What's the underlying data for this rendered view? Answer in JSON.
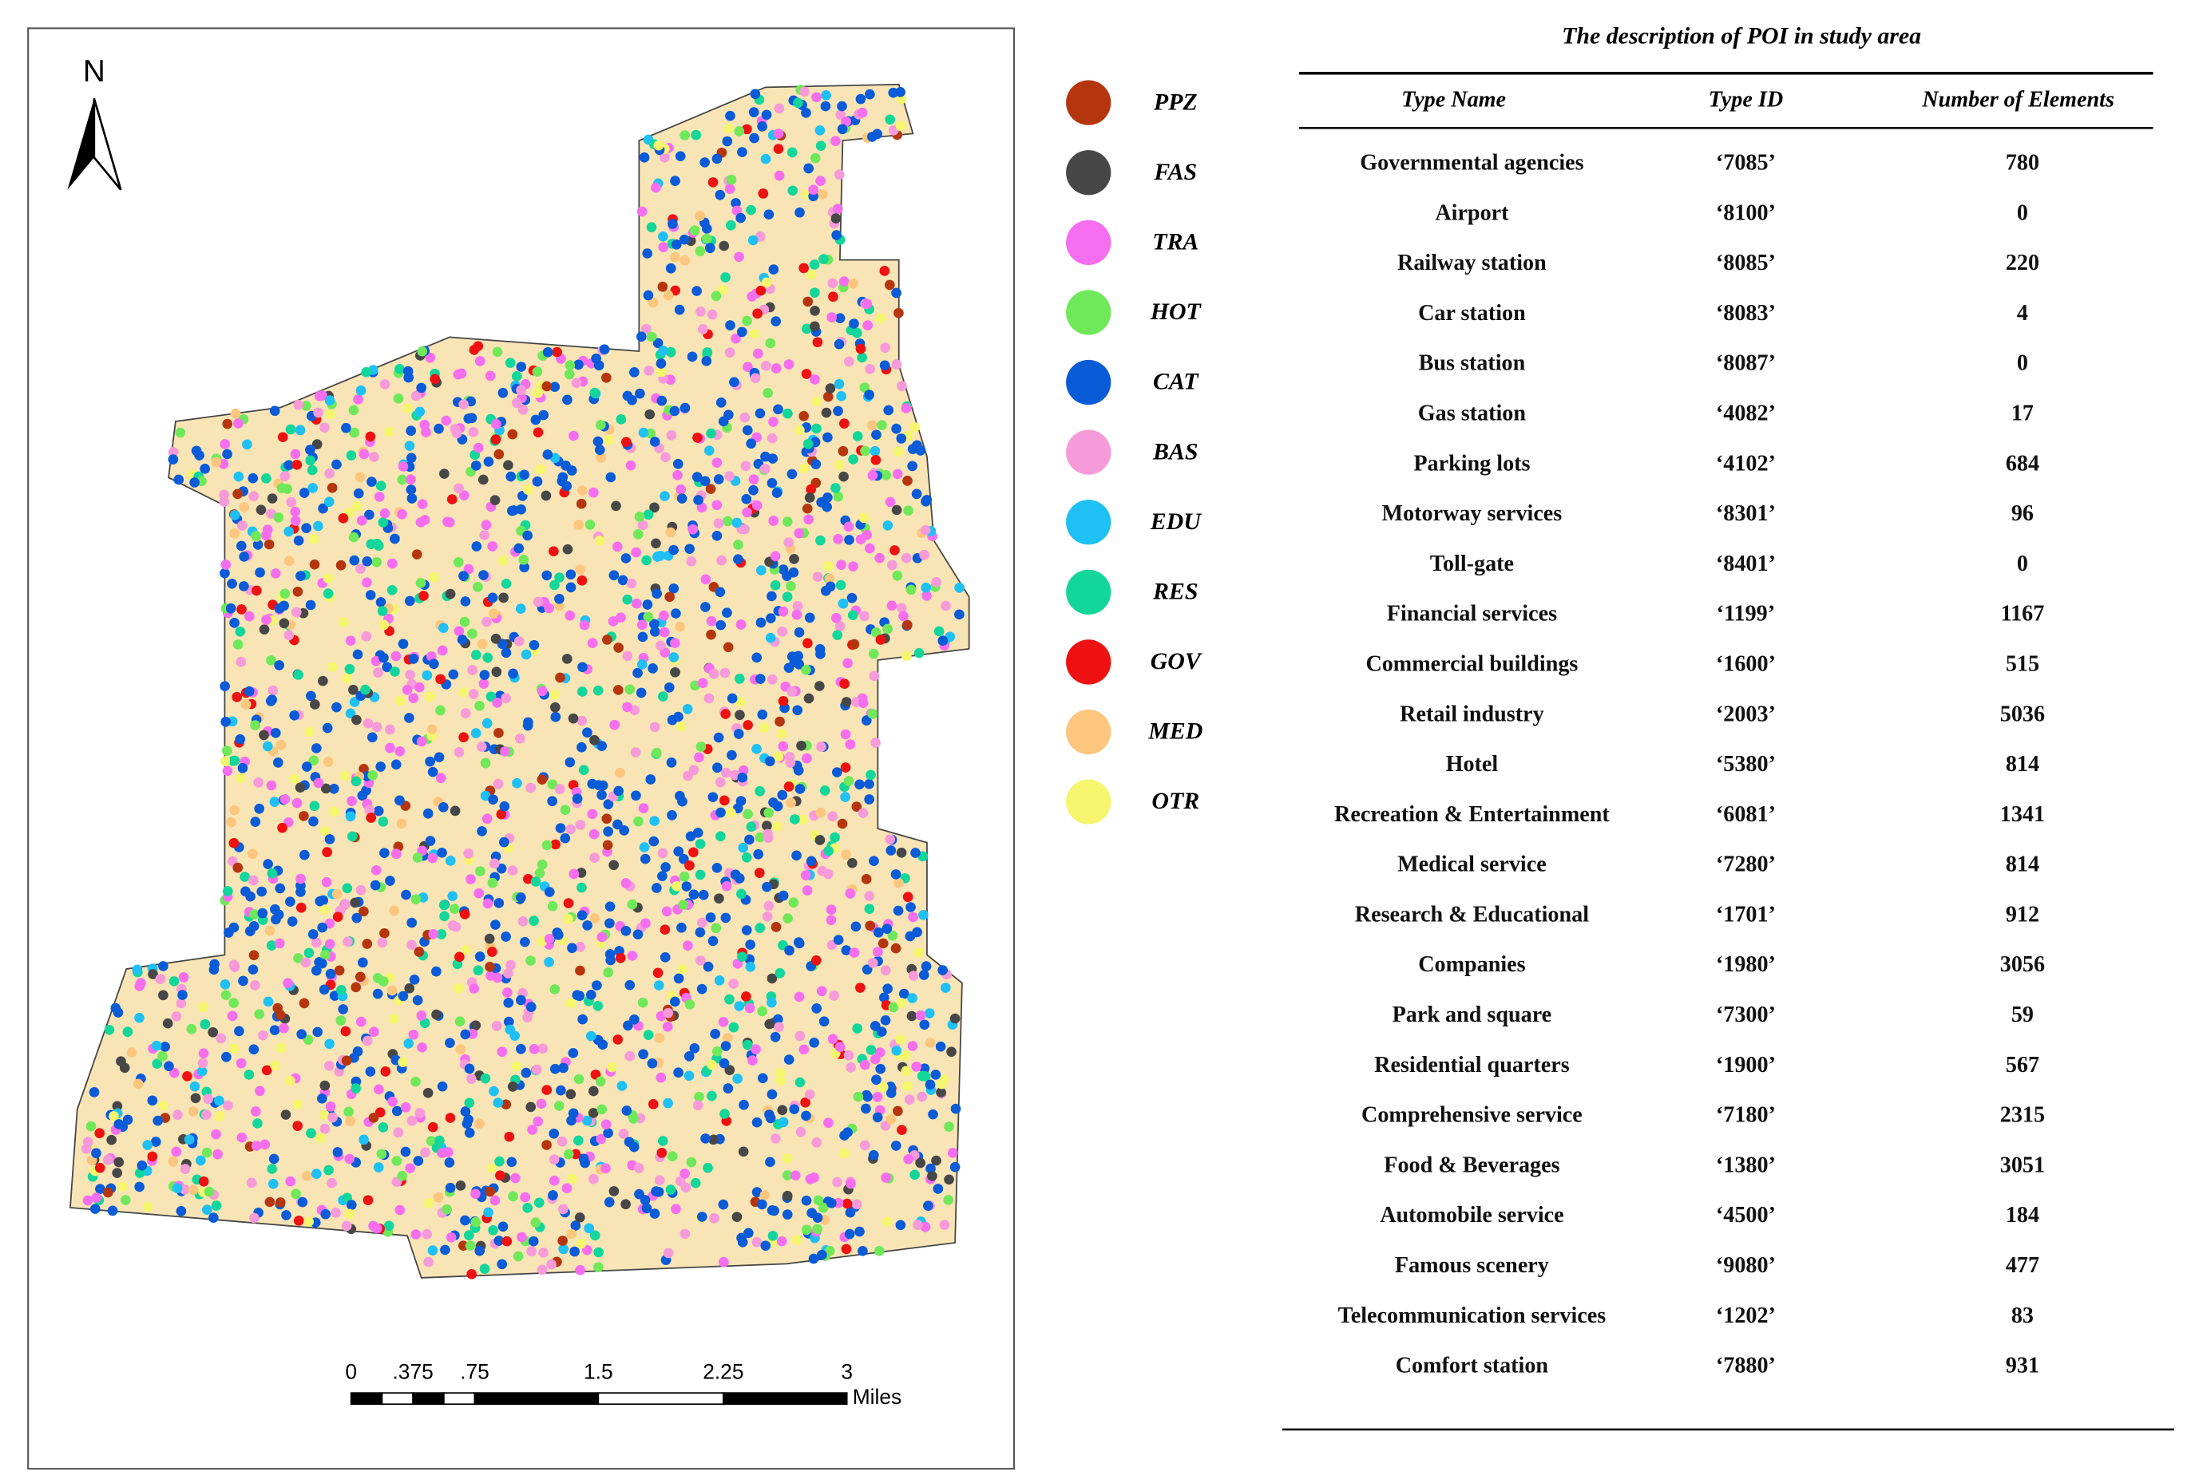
{
  "map": {
    "north": "N",
    "scale_bar": {
      "labels": [
        "0",
        ".375",
        ".75",
        "1.5",
        "2.25",
        "3"
      ],
      "unit": "Miles"
    }
  },
  "legend": {
    "items": [
      {
        "label": "PPZ",
        "color": "#b5360e"
      },
      {
        "label": "FAS",
        "color": "#474747"
      },
      {
        "label": "TRA",
        "color": "#f56ef0"
      },
      {
        "label": "HOT",
        "color": "#6fe85a"
      },
      {
        "label": "CAT",
        "color": "#0a5bd8"
      },
      {
        "label": "BAS",
        "color": "#f79ad9"
      },
      {
        "label": "EDU",
        "color": "#1ec0f5"
      },
      {
        "label": "RES",
        "color": "#12d69a"
      },
      {
        "label": "GOV",
        "color": "#ee1111"
      },
      {
        "label": "MED",
        "color": "#fcc67e"
      },
      {
        "label": "OTR",
        "color": "#f5f56e"
      }
    ]
  },
  "table": {
    "title": "The description of POI in study area",
    "headers": [
      "Type Name",
      "Type ID",
      "Number of Elements"
    ],
    "rows": [
      [
        "Governmental agencies",
        "‘7085’",
        "780"
      ],
      [
        "Airport",
        "‘8100’",
        "0"
      ],
      [
        "Railway station",
        "‘8085’",
        "220"
      ],
      [
        "Car station",
        "‘8083’",
        "4"
      ],
      [
        "Bus station",
        "‘8087’",
        "0"
      ],
      [
        "Gas station",
        "‘4082’",
        "17"
      ],
      [
        "Parking lots",
        "‘4102’",
        "684"
      ],
      [
        "Motorway services",
        "‘8301’",
        "96"
      ],
      [
        "Toll-gate",
        "‘8401’",
        "0"
      ],
      [
        "Financial services",
        "‘1199’",
        "1167"
      ],
      [
        "Commercial buildings",
        "‘1600’",
        "515"
      ],
      [
        "Retail industry",
        "‘2003’",
        "5036"
      ],
      [
        "Hotel",
        "‘5380’",
        "814"
      ],
      [
        "Recreation & Entertainment",
        "‘6081’",
        "1341"
      ],
      [
        "Medical service",
        "‘7280’",
        "814"
      ],
      [
        "Research & Educational",
        "‘1701’",
        "912"
      ],
      [
        "Companies",
        "‘1980’",
        "3056"
      ],
      [
        "Park and square",
        "‘7300’",
        "59"
      ],
      [
        "Residential quarters",
        "‘1900’",
        "567"
      ],
      [
        "Comprehensive service",
        "‘7180’",
        "2315"
      ],
      [
        "Food & Beverages",
        "‘1380’",
        "3051"
      ],
      [
        "Automobile service",
        "‘4500’",
        "184"
      ],
      [
        "Famous scenery",
        "‘9080’",
        "477"
      ],
      [
        "Telecommunication services",
        "‘1202’",
        "83"
      ],
      [
        "Comfort station",
        "‘7880’",
        "931"
      ]
    ]
  }
}
